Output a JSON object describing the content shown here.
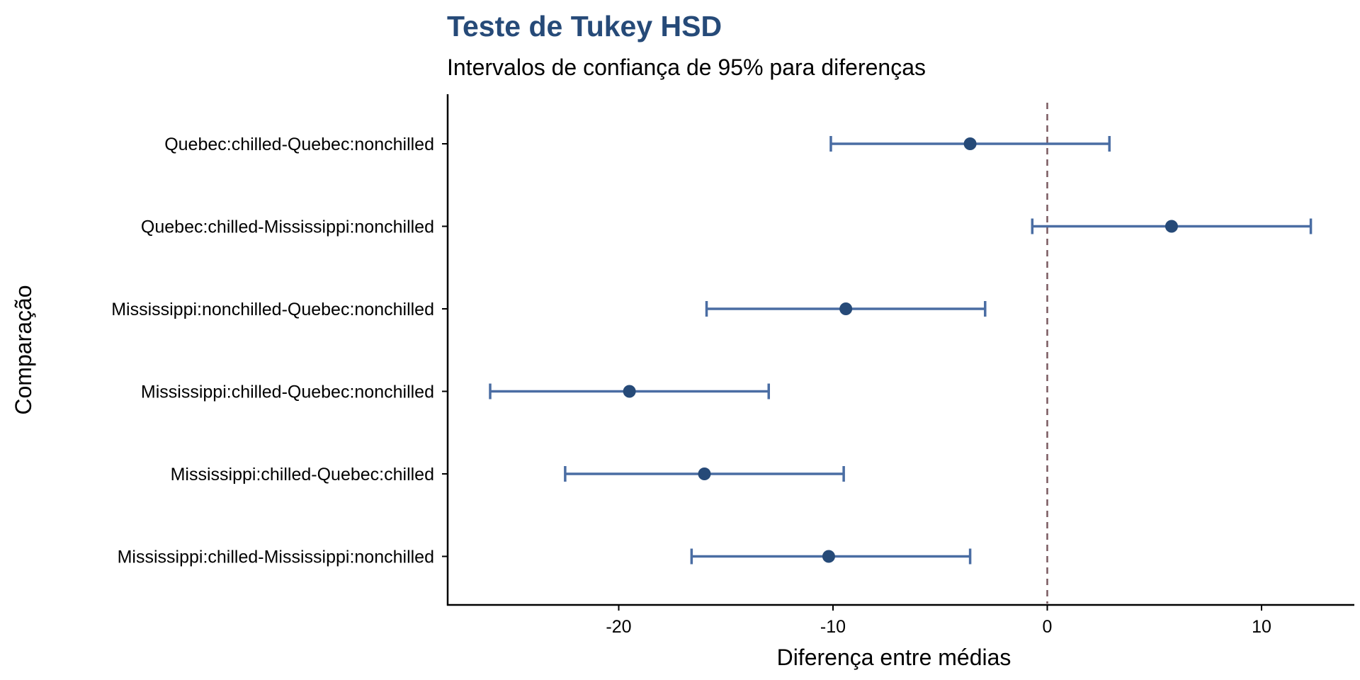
{
  "chart_data": {
    "type": "errorbar",
    "title": "Teste de Tukey HSD",
    "subtitle": "Intervalos de confiança de 95% para diferenças",
    "xlabel": "Diferença entre médias",
    "ylabel": "Comparação",
    "xlim": [
      -28,
      14
    ],
    "xticks": [
      -20,
      -10,
      0,
      10
    ],
    "xtick_labels": [
      "-20",
      "-10",
      "0",
      "10"
    ],
    "reference_line": 0,
    "grid": false,
    "categories": [
      "Quebec:chilled-Quebec:nonchilled",
      "Quebec:chilled-Mississippi:nonchilled",
      "Mississippi:nonchilled-Quebec:nonchilled",
      "Mississippi:chilled-Quebec:nonchilled",
      "Mississippi:chilled-Quebec:chilled",
      "Mississippi:chilled-Mississippi:nonchilled"
    ],
    "diff": [
      -3.6,
      5.8,
      -9.4,
      -19.5,
      -16.0,
      -10.2
    ],
    "lwr": [
      -10.1,
      -0.7,
      -15.9,
      -26.0,
      -22.5,
      -16.6
    ],
    "upr": [
      2.9,
      12.3,
      -2.9,
      -13.0,
      -9.5,
      -3.6
    ],
    "colors": {
      "title": "#264a78",
      "bar": "#4a6da3",
      "point": "#264a78",
      "reference": "#7a5a60",
      "axis": "#000000"
    }
  }
}
